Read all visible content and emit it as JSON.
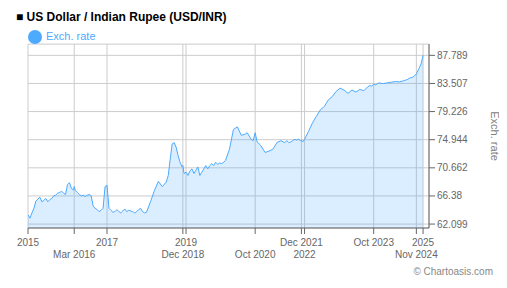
{
  "chart_data": {
    "type": "area",
    "title": "■ US Dollar / Indian Rupee (USD/INR)",
    "ylabel": "Exch. rate",
    "annotations": [
      "© Chartoasis.com"
    ],
    "x": [
      2015.0,
      2015.05,
      2015.1,
      2015.15,
      2015.2,
      2015.25,
      2015.3,
      2015.35,
      2015.4,
      2015.45,
      2015.5,
      2015.55,
      2015.6,
      2015.65,
      2015.7,
      2015.75,
      2015.8,
      2015.85,
      2015.9,
      2015.95,
      2016.0,
      2016.05,
      2016.1,
      2016.15,
      2016.17,
      2016.2,
      2016.25,
      2016.3,
      2016.35,
      2016.4,
      2016.45,
      2016.5,
      2016.55,
      2016.6,
      2016.65,
      2016.7,
      2016.75,
      2016.8,
      2016.85,
      2016.9,
      2016.95,
      2017.0,
      2017.05,
      2017.1,
      2017.15,
      2017.2,
      2017.25,
      2017.3,
      2017.35,
      2017.4,
      2017.45,
      2017.5,
      2017.55,
      2017.6,
      2017.65,
      2017.7,
      2017.75,
      2017.8,
      2017.85,
      2017.9,
      2017.95,
      2018.0,
      2018.1,
      2018.2,
      2018.3,
      2018.4,
      2018.5,
      2018.55,
      2018.6,
      2018.65,
      2018.7,
      2018.75,
      2018.8,
      2018.85,
      2018.9,
      2018.92,
      2018.95,
      2019.0,
      2019.05,
      2019.1,
      2019.15,
      2019.2,
      2019.25,
      2019.3,
      2019.35,
      2019.4,
      2019.45,
      2019.5,
      2019.55,
      2019.6,
      2019.65,
      2019.7,
      2019.75,
      2019.8,
      2019.85,
      2019.9,
      2019.95,
      2020.0,
      2020.1,
      2020.2,
      2020.3,
      2020.4,
      2020.5,
      2020.55,
      2020.6,
      2020.65,
      2020.7,
      2020.75,
      2020.8,
      2020.85,
      2020.9,
      2020.95,
      2021.0,
      2021.1,
      2021.2,
      2021.3,
      2021.4,
      2021.5,
      2021.55,
      2021.6,
      2021.65,
      2021.7,
      2021.75,
      2021.8,
      2021.85,
      2021.9,
      2021.92,
      2021.95,
      2022.0,
      2022.1,
      2022.2,
      2022.3,
      2022.4,
      2022.5,
      2022.6,
      2022.7,
      2022.8,
      2022.9,
      2023.0,
      2023.1,
      2023.2,
      2023.3,
      2023.4,
      2023.5,
      2023.6,
      2023.65,
      2023.7,
      2023.75,
      2023.8,
      2023.85,
      2023.9,
      2023.95,
      2024.0,
      2024.1,
      2024.2,
      2024.3,
      2024.4,
      2024.5,
      2024.55,
      2024.6,
      2024.65,
      2024.7,
      2024.75,
      2024.8,
      2024.83,
      2024.85,
      2024.9,
      2024.95,
      2025.0
    ],
    "series": [
      {
        "name": "Exch. rate",
        "color": "#4daaff",
        "values": [
          63.5,
          63.0,
          63.8,
          64.5,
          65.6,
          65.9,
          66.2,
          65.5,
          65.7,
          66.0,
          65.5,
          65.8,
          66.0,
          66.4,
          66.5,
          66.8,
          66.9,
          67.1,
          66.8,
          66.6,
          68.1,
          68.4,
          67.5,
          67.3,
          67.8,
          67.2,
          66.9,
          66.6,
          66.4,
          66.5,
          66.3,
          66.5,
          66.6,
          66.4,
          64.8,
          64.5,
          64.3,
          64.0,
          64.2,
          64.5,
          67.8,
          68.0,
          64.5,
          64.2,
          63.9,
          64.0,
          64.3,
          64.0,
          63.8,
          64.1,
          64.4,
          64.0,
          64.2,
          64.1,
          64.0,
          63.8,
          64.0,
          64.3,
          64.5,
          64.0,
          63.8,
          63.9,
          65.5,
          67.2,
          68.6,
          67.8,
          68.5,
          69.5,
          72.0,
          74.3,
          74.5,
          73.8,
          72.5,
          71.5,
          70.8,
          71.0,
          69.8,
          70.0,
          69.5,
          70.2,
          70.5,
          69.8,
          70.3,
          70.8,
          69.5,
          70.0,
          70.5,
          71.0,
          70.5,
          71.0,
          71.3,
          71.0,
          71.5,
          71.2,
          71.4,
          71.3,
          71.5,
          71.8,
          73.5,
          76.5,
          76.9,
          75.6,
          75.8,
          76.0,
          75.5,
          75.0,
          74.8,
          76.0,
          74.6,
          74.3,
          74.0,
          73.5,
          73.0,
          73.2,
          73.5,
          74.5,
          74.8,
          74.5,
          74.8,
          74.5,
          74.6,
          74.8,
          75.0,
          74.9,
          75.0,
          74.8,
          74.9,
          74.6,
          75.0,
          76.2,
          77.5,
          78.5,
          79.5,
          80.0,
          81.0,
          81.5,
          82.3,
          82.8,
          82.5,
          82.0,
          82.5,
          82.2,
          82.6,
          82.4,
          83.0,
          83.2,
          83.1,
          83.4,
          83.3,
          83.5,
          83.6,
          83.5,
          83.5,
          83.6,
          83.7,
          83.8,
          83.75,
          83.9,
          84.0,
          84.1,
          84.3,
          84.4,
          84.5,
          84.8,
          84.9,
          85.2,
          85.8,
          86.5,
          87.789
        ]
      }
    ],
    "xlim": [
      2015.0,
      2025.15
    ],
    "xticks": [
      2015,
      {
        "value": 2016.17,
        "label": "Mar 2016"
      },
      2017,
      {
        "value": 2018.92,
        "label": "Dec 2018"
      },
      2019,
      {
        "value": 2020.75,
        "label": "Oct 2020"
      },
      {
        "value": 2021.92,
        "label": "Dec 2021"
      },
      2022,
      {
        "value": 2023.75,
        "label": "Oct 2023"
      },
      {
        "value": 2024.83,
        "label": "Nov 2024"
      },
      2025
    ],
    "ylim": [
      61.5,
      89.5
    ],
    "yticks": [
      62.099,
      66.38,
      70.662,
      74.944,
      79.226,
      83.507,
      87.789
    ],
    "grid": true,
    "legend": "upper left"
  }
}
